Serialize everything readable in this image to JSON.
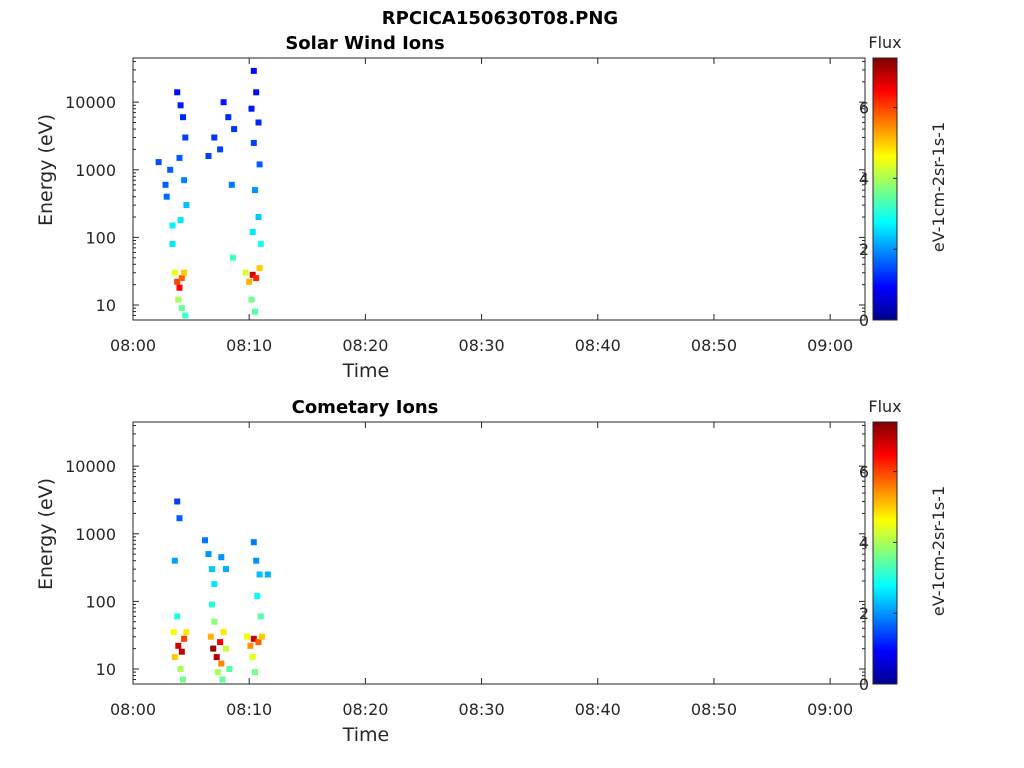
{
  "figure": {
    "title": "RPCICA150630T08.PNG"
  },
  "chart_data": [
    {
      "type": "heatmap",
      "title": "Solar Wind Ions",
      "xlabel": "Time",
      "ylabel": "Energy (eV)",
      "x_ticks": [
        "08:00",
        "08:10",
        "08:20",
        "08:30",
        "08:40",
        "08:50",
        "09:00"
      ],
      "xlim": [
        "08:00",
        "09:03"
      ],
      "y_scale": "log",
      "y_ticks": [
        10,
        100,
        1000,
        10000
      ],
      "ylim": [
        6,
        45000
      ],
      "colorbar": {
        "title": "Flux",
        "label": "eV-1cm-2sr-1s-1",
        "ticks": [
          0,
          2,
          4,
          6
        ],
        "range": [
          0,
          7.4
        ],
        "colormap": "jet"
      },
      "cells": [
        {
          "t": 2.2,
          "e": 1300,
          "v": 1.5
        },
        {
          "t": 2.8,
          "e": 600,
          "v": 1.6
        },
        {
          "t": 2.9,
          "e": 400,
          "v": 1.7
        },
        {
          "t": 3.2,
          "e": 1000,
          "v": 1.6
        },
        {
          "t": 3.4,
          "e": 150,
          "v": 2.7
        },
        {
          "t": 3.4,
          "e": 80,
          "v": 2.6
        },
        {
          "t": 3.6,
          "e": 30,
          "v": 4.5
        },
        {
          "t": 3.8,
          "e": 22,
          "v": 6.0
        },
        {
          "t": 4.0,
          "e": 18,
          "v": 6.5
        },
        {
          "t": 4.2,
          "e": 25,
          "v": 5.8
        },
        {
          "t": 4.4,
          "e": 30,
          "v": 5.0
        },
        {
          "t": 3.9,
          "e": 12,
          "v": 4.0
        },
        {
          "t": 4.2,
          "e": 9,
          "v": 3.5
        },
        {
          "t": 4.5,
          "e": 7,
          "v": 3.2
        },
        {
          "t": 3.8,
          "e": 14000,
          "v": 1.0
        },
        {
          "t": 4.1,
          "e": 9000,
          "v": 1.1
        },
        {
          "t": 4.3,
          "e": 6000,
          "v": 1.2
        },
        {
          "t": 4.5,
          "e": 3000,
          "v": 1.4
        },
        {
          "t": 4.0,
          "e": 1500,
          "v": 1.6
        },
        {
          "t": 4.4,
          "e": 700,
          "v": 1.9
        },
        {
          "t": 4.6,
          "e": 300,
          "v": 2.3
        },
        {
          "t": 4.1,
          "e": 180,
          "v": 2.6
        },
        {
          "t": 6.5,
          "e": 1600,
          "v": 1.4
        },
        {
          "t": 7.0,
          "e": 3000,
          "v": 1.3
        },
        {
          "t": 7.5,
          "e": 2000,
          "v": 1.4
        },
        {
          "t": 7.8,
          "e": 10000,
          "v": 1.1
        },
        {
          "t": 8.2,
          "e": 6000,
          "v": 1.2
        },
        {
          "t": 8.5,
          "e": 600,
          "v": 1.8
        },
        {
          "t": 8.7,
          "e": 4000,
          "v": 1.3
        },
        {
          "t": 8.6,
          "e": 50,
          "v": 3.2
        },
        {
          "t": 9.7,
          "e": 30,
          "v": 4.3
        },
        {
          "t": 10.0,
          "e": 22,
          "v": 5.2
        },
        {
          "t": 10.3,
          "e": 28,
          "v": 6.8
        },
        {
          "t": 10.6,
          "e": 25,
          "v": 6.2
        },
        {
          "t": 10.9,
          "e": 35,
          "v": 5.0
        },
        {
          "t": 10.2,
          "e": 12,
          "v": 3.6
        },
        {
          "t": 10.5,
          "e": 8,
          "v": 3.4
        },
        {
          "t": 10.4,
          "e": 29000,
          "v": 1.0
        },
        {
          "t": 10.6,
          "e": 14000,
          "v": 1.0
        },
        {
          "t": 10.2,
          "e": 8000,
          "v": 1.1
        },
        {
          "t": 10.8,
          "e": 5000,
          "v": 1.2
        },
        {
          "t": 10.4,
          "e": 2500,
          "v": 1.4
        },
        {
          "t": 10.9,
          "e": 1200,
          "v": 1.6
        },
        {
          "t": 10.5,
          "e": 500,
          "v": 2.0
        },
        {
          "t": 10.8,
          "e": 200,
          "v": 2.4
        },
        {
          "t": 10.3,
          "e": 120,
          "v": 2.6
        },
        {
          "t": 11.0,
          "e": 80,
          "v": 2.9
        }
      ]
    },
    {
      "type": "heatmap",
      "title": "Cometary Ions",
      "xlabel": "Time",
      "ylabel": "Energy (eV)",
      "x_ticks": [
        "08:00",
        "08:10",
        "08:20",
        "08:30",
        "08:40",
        "08:50",
        "09:00"
      ],
      "xlim": [
        "08:00",
        "09:03"
      ],
      "y_scale": "log",
      "y_ticks": [
        10,
        100,
        1000,
        10000
      ],
      "ylim": [
        6,
        45000
      ],
      "colorbar": {
        "title": "Flux",
        "label": "eV-1cm-2sr-1s-1",
        "ticks": [
          0,
          2,
          4,
          6
        ],
        "range": [
          0,
          7.4
        ],
        "colormap": "jet"
      },
      "cells": [
        {
          "t": 3.8,
          "e": 3000,
          "v": 1.4
        },
        {
          "t": 4.0,
          "e": 1700,
          "v": 1.6
        },
        {
          "t": 3.6,
          "e": 400,
          "v": 2.1
        },
        {
          "t": 3.8,
          "e": 60,
          "v": 3.0
        },
        {
          "t": 3.5,
          "e": 35,
          "v": 4.6
        },
        {
          "t": 3.9,
          "e": 22,
          "v": 6.8
        },
        {
          "t": 4.2,
          "e": 18,
          "v": 7.0
        },
        {
          "t": 4.4,
          "e": 28,
          "v": 6.0
        },
        {
          "t": 3.6,
          "e": 15,
          "v": 5.0
        },
        {
          "t": 4.6,
          "e": 35,
          "v": 4.8
        },
        {
          "t": 4.1,
          "e": 10,
          "v": 4.0
        },
        {
          "t": 4.3,
          "e": 7,
          "v": 3.6
        },
        {
          "t": 6.2,
          "e": 800,
          "v": 1.8
        },
        {
          "t": 6.5,
          "e": 500,
          "v": 2.0
        },
        {
          "t": 6.8,
          "e": 300,
          "v": 2.4
        },
        {
          "t": 7.0,
          "e": 180,
          "v": 2.6
        },
        {
          "t": 6.8,
          "e": 90,
          "v": 3.0
        },
        {
          "t": 7.0,
          "e": 50,
          "v": 3.8
        },
        {
          "t": 6.7,
          "e": 30,
          "v": 5.2
        },
        {
          "t": 6.9,
          "e": 20,
          "v": 7.2
        },
        {
          "t": 7.2,
          "e": 15,
          "v": 7.0
        },
        {
          "t": 7.5,
          "e": 25,
          "v": 6.5
        },
        {
          "t": 7.6,
          "e": 12,
          "v": 5.5
        },
        {
          "t": 7.8,
          "e": 35,
          "v": 4.8
        },
        {
          "t": 8.0,
          "e": 20,
          "v": 4.2
        },
        {
          "t": 7.3,
          "e": 9,
          "v": 4.0
        },
        {
          "t": 7.7,
          "e": 7,
          "v": 3.5
        },
        {
          "t": 8.3,
          "e": 10,
          "v": 3.4
        },
        {
          "t": 7.6,
          "e": 450,
          "v": 2.0
        },
        {
          "t": 8.0,
          "e": 300,
          "v": 2.2
        },
        {
          "t": 9.8,
          "e": 30,
          "v": 4.6
        },
        {
          "t": 10.1,
          "e": 22,
          "v": 5.4
        },
        {
          "t": 10.4,
          "e": 28,
          "v": 6.8
        },
        {
          "t": 10.8,
          "e": 25,
          "v": 5.8
        },
        {
          "t": 11.1,
          "e": 30,
          "v": 5.0
        },
        {
          "t": 10.3,
          "e": 15,
          "v": 4.4
        },
        {
          "t": 10.5,
          "e": 9,
          "v": 3.6
        },
        {
          "t": 10.4,
          "e": 750,
          "v": 1.8
        },
        {
          "t": 10.6,
          "e": 400,
          "v": 2.0
        },
        {
          "t": 10.9,
          "e": 250,
          "v": 2.3
        },
        {
          "t": 10.7,
          "e": 120,
          "v": 2.8
        },
        {
          "t": 11.0,
          "e": 60,
          "v": 3.4
        },
        {
          "t": 11.6,
          "e": 250,
          "v": 2.2
        }
      ]
    }
  ]
}
